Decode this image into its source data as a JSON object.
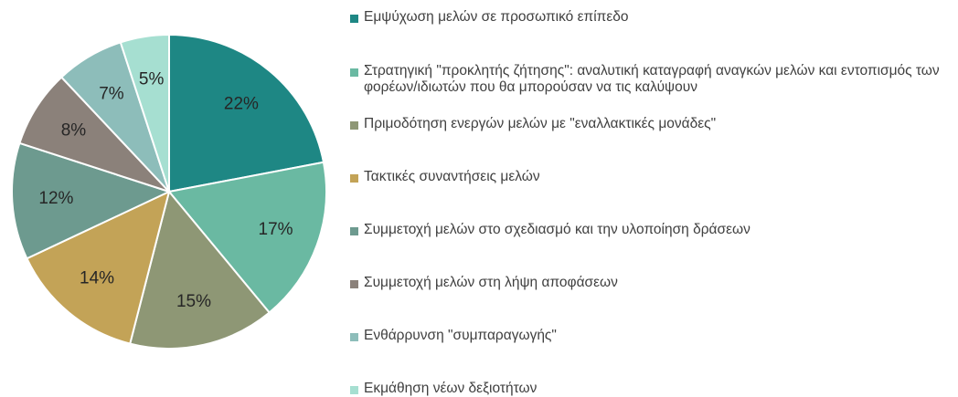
{
  "chart_data": {
    "type": "pie",
    "categories": [
      "Εμψύχωση μελών σε προσωπικό επίπεδο",
      "Στρατηγική \"προκλητής ζήτησης\": αναλυτική καταγραφή αναγκών μελών και εντοπισμός των φορέων/ιδιωτών που θα μπορούσαν να τις καλύψουν",
      "Πριμοδότηση ενεργών μελών με \"εναλλακτικές μονάδες\"",
      "Τακτικές συναντήσεις μελών",
      "Συμμετοχή μελών στο σχεδιασμό και την υλοποίηση δράσεων",
      "Συμμετοχή μελών στη λήψη αποφάσεων",
      "Ενθάρρυνση \"συμπαραγωγής\"",
      "Εκμάθηση νέων δεξιοτήτων"
    ],
    "values": [
      22,
      17,
      15,
      14,
      12,
      8,
      7,
      5
    ],
    "value_labels": [
      "22%",
      "17%",
      "15%",
      "14%",
      "12%",
      "8%",
      "7%",
      "5%"
    ],
    "colors": [
      "#1e8784",
      "#6ab9a2",
      "#8e9775",
      "#c3a357",
      "#6d9a8f",
      "#8b817a",
      "#8dbdba",
      "#a6dfd1"
    ],
    "legend": "right"
  }
}
